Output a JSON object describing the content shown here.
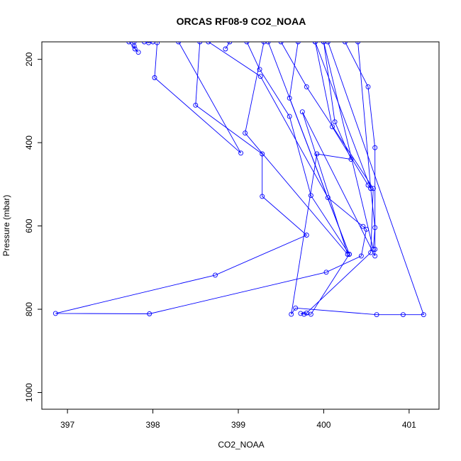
{
  "chart_data": {
    "type": "line",
    "title": "ORCAS RF08-9 CO2_NOAA",
    "xlabel": "CO2_NOAA",
    "ylabel": "Pressure (mbar)",
    "xlim": [
      396.7,
      401.35
    ],
    "ylim": [
      1040,
      158
    ],
    "y_inverted": true,
    "xticks": [
      397,
      398,
      399,
      400,
      401
    ],
    "yticks": [
      200,
      400,
      600,
      800,
      1000
    ],
    "series_color": "#0000ff",
    "series": [
      {
        "values": [
          [
            397.78,
            158
          ],
          [
            397.78,
            168
          ],
          [
            397.79,
            175
          ],
          [
            397.83,
            183
          ],
          [
            397.72,
            158
          ]
        ]
      },
      {
        "values": [
          [
            398.0,
            158
          ],
          [
            397.95,
            160
          ],
          [
            397.9,
            158
          ]
        ]
      },
      {
        "values": [
          [
            398.05,
            160
          ],
          [
            398.02,
            244
          ],
          [
            399.03,
            425
          ],
          [
            398.3,
            158
          ]
        ]
      },
      {
        "values": [
          [
            398.55,
            158
          ],
          [
            398.5,
            310
          ],
          [
            399.28,
            427
          ],
          [
            399.28,
            529
          ],
          [
            399.8,
            622
          ],
          [
            398.73,
            718
          ],
          [
            396.86,
            810
          ],
          [
            397.96,
            811
          ],
          [
            400.03,
            711
          ],
          [
            400.44,
            672
          ],
          [
            400.5,
            608
          ],
          [
            400.46,
            601
          ],
          [
            400.05,
            532
          ],
          [
            399.26,
            241
          ],
          [
            398.65,
            158
          ]
        ]
      },
      {
        "values": [
          [
            398.85,
            175
          ],
          [
            398.9,
            158
          ]
        ]
      },
      {
        "values": [
          [
            399.1,
            158
          ],
          [
            399.25,
            224
          ],
          [
            399.6,
            337
          ],
          [
            399.85,
            527
          ],
          [
            400.3,
            668
          ],
          [
            399.35,
            158
          ]
        ]
      },
      {
        "values": [
          [
            399.7,
            158
          ],
          [
            399.6,
            293
          ],
          [
            400.3,
            668
          ],
          [
            399.85,
            812
          ],
          [
            399.77,
            812
          ],
          [
            399.73,
            810
          ],
          [
            399.8,
            809
          ],
          [
            400.55,
            664
          ],
          [
            400.58,
            510
          ],
          [
            399.8,
            266
          ],
          [
            399.5,
            158
          ]
        ]
      },
      {
        "values": [
          [
            399.3,
            158
          ],
          [
            399.08,
            377
          ],
          [
            400.28,
            668
          ],
          [
            399.75,
            326
          ],
          [
            400.6,
            672
          ],
          [
            400.6,
            656
          ],
          [
            400.6,
            412
          ],
          [
            400.52,
            266
          ],
          [
            400.25,
            158
          ]
        ]
      },
      {
        "values": [
          [
            399.9,
            158
          ],
          [
            400.1,
            362
          ],
          [
            400.52,
            502
          ],
          [
            400.55,
            510
          ],
          [
            399.9,
            158
          ]
        ]
      },
      {
        "values": [
          [
            400.0,
            158
          ],
          [
            400.13,
            350
          ],
          [
            400.32,
            440
          ],
          [
            399.92,
            427
          ],
          [
            399.62,
            812
          ],
          [
            399.67,
            797
          ],
          [
            400.62,
            813
          ],
          [
            400.93,
            813
          ],
          [
            401.17,
            813
          ],
          [
            400.05,
            158
          ]
        ]
      },
      {
        "values": [
          [
            400.0,
            158
          ],
          [
            400.58,
            656
          ],
          [
            400.6,
            604
          ],
          [
            400.55,
            510
          ],
          [
            400.4,
            158
          ]
        ]
      }
    ]
  }
}
